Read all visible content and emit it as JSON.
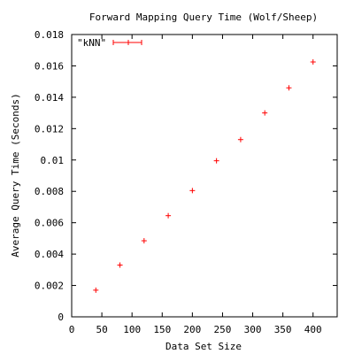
{
  "chart_data": {
    "type": "scatter",
    "title": "Forward Mapping Query Time (Wolf/Sheep)",
    "xlabel": "Data Set Size",
    "ylabel": "Average Query Time (Seconds)",
    "xlim": [
      0,
      440
    ],
    "ylim": [
      0,
      0.018
    ],
    "x_ticks": [
      0,
      50,
      100,
      150,
      200,
      250,
      300,
      350,
      400
    ],
    "x_tick_labels": [
      "0",
      "50",
      "100",
      "150",
      "200",
      "250",
      "300",
      "350",
      "400"
    ],
    "y_ticks": [
      0,
      0.002,
      0.004,
      0.006,
      0.008,
      0.01,
      0.012,
      0.014,
      0.016,
      0.018
    ],
    "y_tick_labels": [
      "0",
      "0.002",
      "0.004",
      "0.006",
      "0.008",
      "0.01",
      "0.012",
      "0.014",
      "0.016",
      "0.018"
    ],
    "grid": false,
    "legend_position": "top-left",
    "series": [
      {
        "name": "\"kNN\"",
        "color": "#ff0000",
        "marker": "errorbar-cross",
        "x": [
          40,
          80,
          120,
          160,
          200,
          240,
          280,
          320,
          360,
          400
        ],
        "y": [
          0.0017,
          0.0033,
          0.00485,
          0.00645,
          0.00805,
          0.00995,
          0.0113,
          0.013,
          0.0146,
          0.01625
        ]
      }
    ]
  }
}
